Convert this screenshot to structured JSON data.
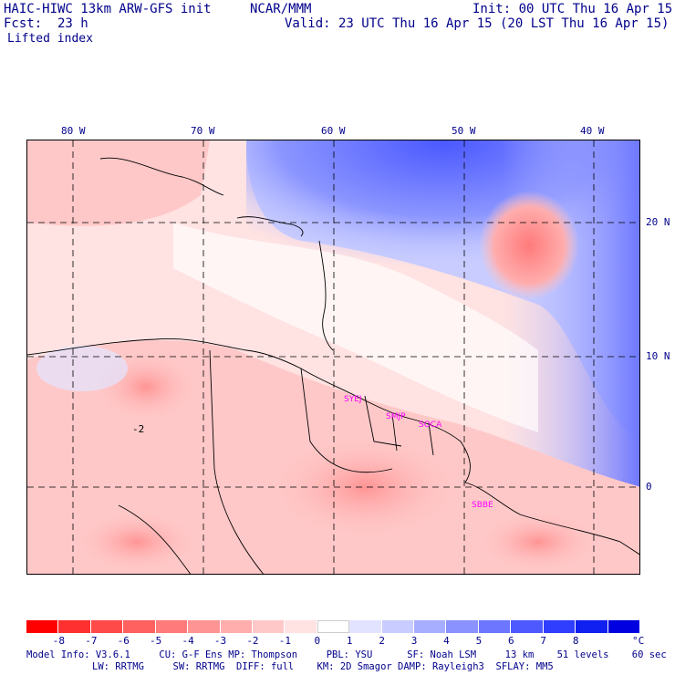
{
  "header": {
    "model_title": "HAIC-HIWC 13km ARW-GFS init",
    "org": "NCAR/MMM",
    "init": "Init: 00 UTC Thu 16 Apr 15",
    "fcst": "Fcst:  23 h",
    "valid": "Valid: 23 UTC Thu 16 Apr 15 (20 LST Thu 16 Apr 15)",
    "field": "Lifted index"
  },
  "map": {
    "lon_labels": [
      "80 W",
      "70 W",
      "60 W",
      "50 W",
      "40 W"
    ],
    "lat_labels": [
      "20 N",
      "10 N",
      "0"
    ],
    "stations": [
      "SYEJ",
      "SMJP",
      "SOCA",
      "SBBE"
    ],
    "contour_label": "-2"
  },
  "legend": {
    "ticks": [
      "-8",
      "-7",
      "-6",
      "-5",
      "-4",
      "-3",
      "-2",
      "-1",
      "0",
      "1",
      "2",
      "3",
      "4",
      "5",
      "6",
      "7",
      "8"
    ],
    "unit": "°C",
    "colors": [
      "#ff0000",
      "#ff3030",
      "#ff4a4a",
      "#ff6060",
      "#ff7a7a",
      "#ff9494",
      "#ffadad",
      "#ffc8c8",
      "#ffe2e2",
      "#ffffff",
      "#e2e4ff",
      "#c8ccff",
      "#a8aeff",
      "#8a92ff",
      "#6c76ff",
      "#4e5aff",
      "#303eff",
      "#1020f0",
      "#0000e0"
    ]
  },
  "footer": {
    "line1": "Model Info: V3.6.1     CU: G-F Ens MP: Thompson     PBL: YSU      SF: Noah LSM     13 km    51 levels    60 sec",
    "line2": "LW: RRTMG     SW: RRTMG  DIFF: full    KM: 2D Smagor DAMP: Rayleigh3  SFLAY: MM5"
  }
}
